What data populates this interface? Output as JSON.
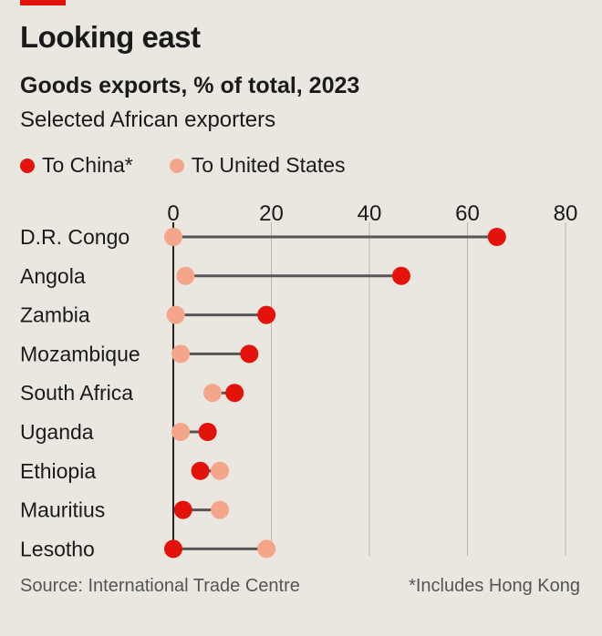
{
  "header": {
    "title": "Looking east",
    "subtitle": "Goods exports, % of total, 2023",
    "description": "Selected African exporters"
  },
  "legend": {
    "china_label": "To China*",
    "us_label": "To United States"
  },
  "colors": {
    "china": "#e3120b",
    "us": "#f4a58a",
    "connector": "#555555",
    "grid": "#b9b7b0"
  },
  "footer": {
    "source": "Source: International Trade Centre",
    "note": "*Includes Hong Kong"
  },
  "chart_data": {
    "type": "dumbbell",
    "xlim": [
      0,
      80
    ],
    "xticks": [
      0,
      20,
      40,
      60,
      80
    ],
    "categories": [
      "D.R. Congo",
      "Angola",
      "Zambia",
      "Mozambique",
      "South Africa",
      "Uganda",
      "Ethiopia",
      "Mauritius",
      "Lesotho"
    ],
    "series": [
      {
        "name": "To China*",
        "values": [
          66,
          46.5,
          19,
          15.5,
          12.5,
          7,
          5.5,
          2,
          0
        ]
      },
      {
        "name": "To United States",
        "values": [
          0,
          2.5,
          0.5,
          1.5,
          8,
          1.5,
          9.5,
          9.5,
          19
        ]
      }
    ]
  }
}
